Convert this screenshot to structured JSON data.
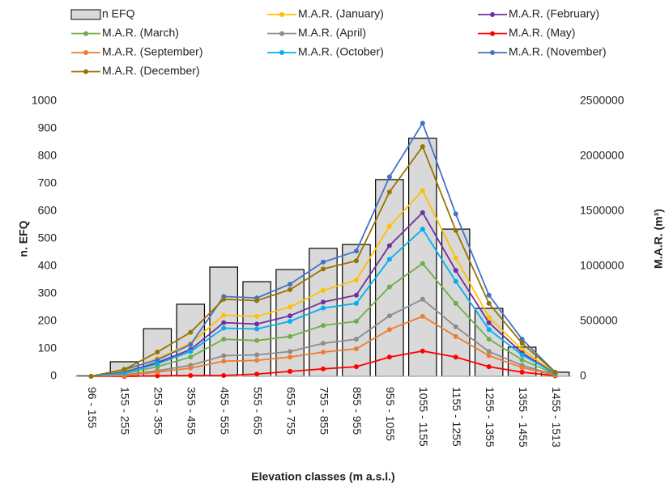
{
  "chart_data": {
    "type": "combo",
    "categories": [
      "96 - 155",
      "155 - 255",
      "255 - 355",
      "355 - 455",
      "455 - 555",
      "555 - 655",
      "655 - 755",
      "755 - 855",
      "855 - 955",
      "955 - 1055",
      "1055 - 1155",
      "1155 - 1255",
      "1255 - 1355",
      "1355 - 1455",
      "1455 - 1513"
    ],
    "x_label": "Elevation classes (m a.s.l.)",
    "y_label": "n. EFQ",
    "y2_label": "M.A.R. (m³)",
    "ylim": [
      0,
      1000
    ],
    "yticks": [
      0,
      100,
      200,
      300,
      400,
      500,
      600,
      700,
      800,
      900,
      1000
    ],
    "y2lim": [
      0,
      2500000
    ],
    "y2ticks": [
      0,
      500000,
      1000000,
      1500000,
      2000000,
      2500000
    ],
    "series": [
      {
        "name": "n EFQ",
        "type": "bar",
        "axis": "y",
        "color": "#d9d9d9",
        "values": [
          2,
          53,
          173,
          262,
          397,
          344,
          388,
          465,
          479,
          715,
          865,
          535,
          247,
          106,
          15
        ]
      },
      {
        "name": "M.A.R. (January)",
        "type": "line",
        "axis": "y2",
        "color": "#ffc000",
        "values": [
          0,
          50000,
          162500,
          300000,
          555000,
          545000,
          630000,
          780000,
          875000,
          1362500,
          1687500,
          1075000,
          537500,
          242500,
          30000
        ]
      },
      {
        "name": "M.A.R. (February)",
        "type": "line",
        "axis": "y2",
        "color": "#7030a0",
        "values": [
          0,
          37500,
          125000,
          242500,
          487500,
          475000,
          550000,
          675000,
          737500,
          1187500,
          1487500,
          962500,
          487500,
          212500,
          25000
        ]
      },
      {
        "name": "M.A.R. (March)",
        "type": "line",
        "axis": "y2",
        "color": "#70ad47",
        "values": [
          0,
          25000,
          87500,
          175000,
          337500,
          325000,
          362500,
          462500,
          500000,
          812500,
          1025000,
          662500,
          337500,
          150000,
          20000
        ]
      },
      {
        "name": "M.A.R. (April)",
        "type": "line",
        "axis": "y2",
        "color": "#8c8c8c",
        "values": [
          0,
          12500,
          50000,
          100000,
          187500,
          195000,
          225000,
          300000,
          337500,
          550000,
          700000,
          450000,
          225000,
          100000,
          12500
        ]
      },
      {
        "name": "M.A.R. (May)",
        "type": "line",
        "axis": "y2",
        "color": "#ff0000",
        "values": [
          0,
          0,
          5000,
          7500,
          7500,
          20000,
          45000,
          67500,
          87500,
          175000,
          230000,
          175000,
          87500,
          37500,
          5000
        ]
      },
      {
        "name": "M.A.R. (September)",
        "type": "line",
        "axis": "y2",
        "color": "#ed7d31",
        "values": [
          0,
          7500,
          37500,
          75000,
          137500,
          145000,
          175000,
          220000,
          250000,
          425000,
          545000,
          362500,
          187500,
          80000,
          10000
        ]
      },
      {
        "name": "M.A.R. (October)",
        "type": "line",
        "axis": "y2",
        "color": "#00b0f0",
        "values": [
          0,
          30000,
          112500,
          225000,
          437500,
          430000,
          500000,
          620000,
          662500,
          1062500,
          1337500,
          862500,
          425000,
          195000,
          25000
        ]
      },
      {
        "name": "M.A.R. (November)",
        "type": "line",
        "axis": "y2",
        "color": "#4472c4",
        "values": [
          0,
          62500,
          150000,
          287500,
          725000,
          712500,
          837500,
          1037500,
          1137500,
          1812500,
          2300000,
          1475000,
          737500,
          337500,
          37500
        ]
      },
      {
        "name": "M.A.R. (December)",
        "type": "line",
        "axis": "y2",
        "color": "#997300",
        "values": [
          0,
          62500,
          220000,
          400000,
          700000,
          687500,
          787500,
          975000,
          1050000,
          1675000,
          2087500,
          1325000,
          662500,
          300000,
          37500
        ]
      }
    ]
  }
}
